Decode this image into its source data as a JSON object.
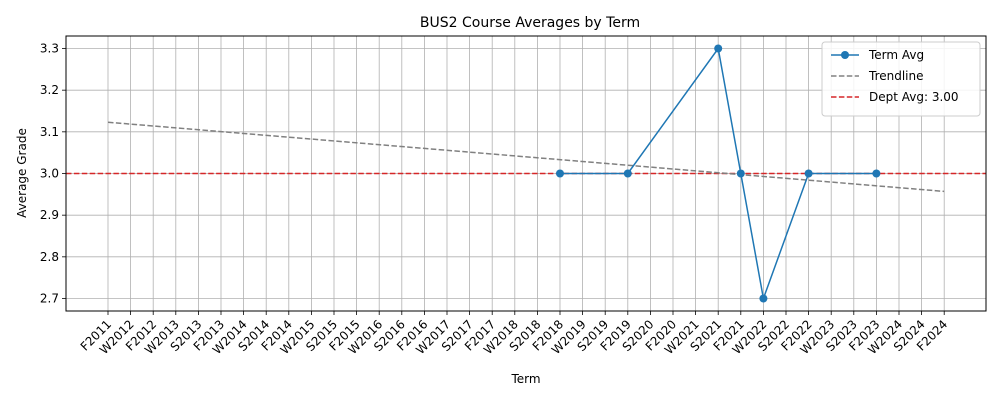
{
  "chart_data": {
    "type": "line",
    "title": "BUS2 Course Averages by Term",
    "xlabel": "Term",
    "ylabel": "Average Grade",
    "ylim": [
      2.67,
      3.33
    ],
    "yticks": [
      2.7,
      2.8,
      2.9,
      3.0,
      3.1,
      3.2,
      3.3
    ],
    "grid": true,
    "legend_position": "top-right",
    "categories": [
      "F2011",
      "W2012",
      "F2012",
      "W2013",
      "S2013",
      "F2013",
      "W2014",
      "S2014",
      "F2014",
      "W2015",
      "S2015",
      "F2015",
      "W2016",
      "S2016",
      "F2016",
      "W2017",
      "S2017",
      "F2017",
      "W2018",
      "S2018",
      "F2018",
      "W2019",
      "S2019",
      "F2019",
      "S2020",
      "F2020",
      "W2021",
      "S2021",
      "F2021",
      "W2022",
      "S2022",
      "F2022",
      "W2023",
      "S2023",
      "F2023",
      "W2024",
      "S2024",
      "F2024"
    ],
    "series": [
      {
        "name": "Term Avg",
        "kind": "line-markers",
        "color": "#1f77b4",
        "points": [
          {
            "x": "F2018",
            "y": 3.0
          },
          {
            "x": "F2019",
            "y": 3.0
          },
          {
            "x": "S2021",
            "y": 3.3
          },
          {
            "x": "F2021",
            "y": 3.0
          },
          {
            "x": "W2022",
            "y": 2.7
          },
          {
            "x": "F2022",
            "y": 3.0
          },
          {
            "x": "F2023",
            "y": 3.0
          }
        ]
      },
      {
        "name": "Trendline",
        "kind": "dashed-line",
        "color": "#808080",
        "points": [
          {
            "x": "F2011",
            "y": 3.123
          },
          {
            "x": "F2024",
            "y": 2.957
          }
        ]
      },
      {
        "name": "Dept Avg: 3.00",
        "kind": "horizontal-dashed",
        "color": "#d62728",
        "y": 3.0
      }
    ]
  }
}
